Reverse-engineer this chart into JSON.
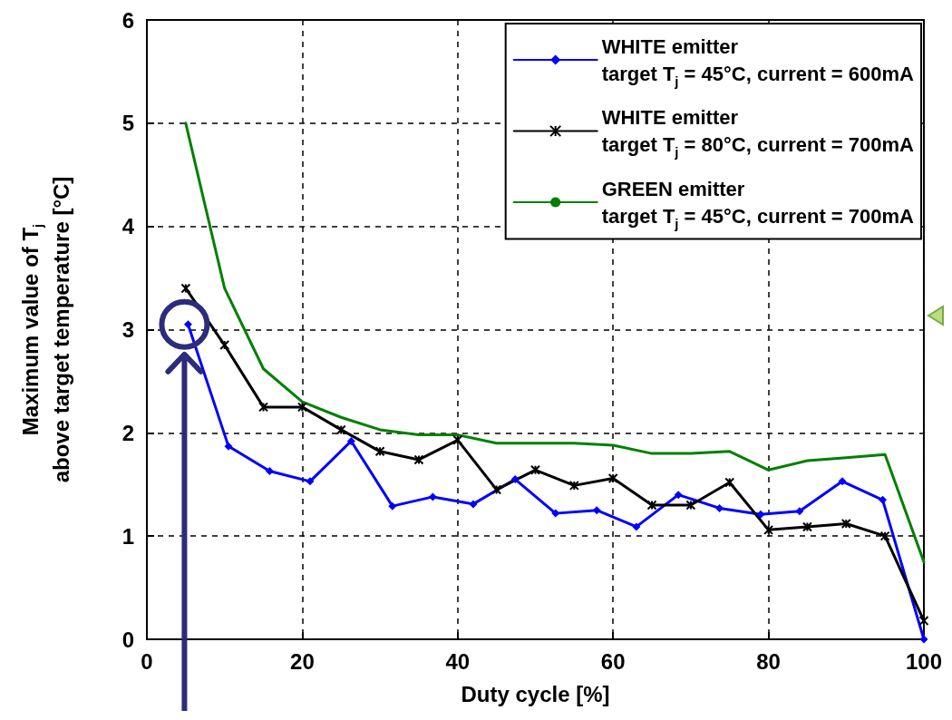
{
  "chart_data": {
    "type": "line",
    "xlabel": "Duty cycle [%]",
    "ylabel": "Maximum value of T$_{j}$\nabove target temperature [°C]",
    "xlim": [
      0,
      100
    ],
    "xticks": [
      0,
      20,
      40,
      60,
      80,
      100
    ],
    "ylim": [
      0,
      6
    ],
    "yticks": [
      0,
      1,
      2,
      3,
      4,
      5,
      6
    ],
    "grid": true,
    "legend": "top right",
    "line_style": "solid",
    "series": [
      {
        "name": "WHITE emitter\ntarget T$_{j}$ = 45°C, current = 600mA",
        "color": "#0000ff",
        "marker": "diamond",
        "x": [
          5.3,
          10.5,
          15.8,
          21,
          26.3,
          31.6,
          36.8,
          42,
          47.4,
          52.6,
          57.9,
          63,
          68.4,
          73.7,
          79,
          84,
          89.5,
          94.7,
          100
        ],
        "values": [
          3.05,
          1.87,
          1.63,
          1.53,
          1.92,
          1.29,
          1.38,
          1.31,
          1.55,
          1.22,
          1.25,
          1.09,
          1.4,
          1.27,
          1.21,
          1.24,
          1.53,
          1.35,
          0
        ]
      },
      {
        "name": "WHITE emitter\ntarget T$_{j}$ = 80°C, current = 700mA",
        "color": "#000000",
        "marker": "cross",
        "x": [
          5,
          10,
          15,
          20,
          25,
          30,
          35,
          40,
          45,
          50,
          55,
          60,
          65,
          70,
          75,
          80,
          85,
          90,
          95,
          100
        ],
        "values": [
          3.4,
          2.85,
          2.25,
          2.25,
          2.03,
          1.82,
          1.74,
          1.93,
          1.45,
          1.64,
          1.49,
          1.56,
          1.3,
          1.3,
          1.52,
          1.06,
          1.09,
          1.12,
          1,
          0.18
        ]
      },
      {
        "name": "GREEN emitter\ntarget T$_{j}$ = 45°C, current = 700mA",
        "color": "#008000",
        "marker": "none",
        "x": [
          5,
          10,
          15,
          20,
          25,
          30,
          35,
          40,
          45,
          50,
          55,
          60,
          65,
          70,
          75,
          80,
          85,
          90,
          95,
          100
        ],
        "values": [
          5,
          3.4,
          2.62,
          2.3,
          2.15,
          2.03,
          1.98,
          1.98,
          1.9,
          1.9,
          1.9,
          1.88,
          1.8,
          1.8,
          1.82,
          1.64,
          1.73,
          1.76,
          1.79,
          0.75
        ]
      }
    ]
  }
}
